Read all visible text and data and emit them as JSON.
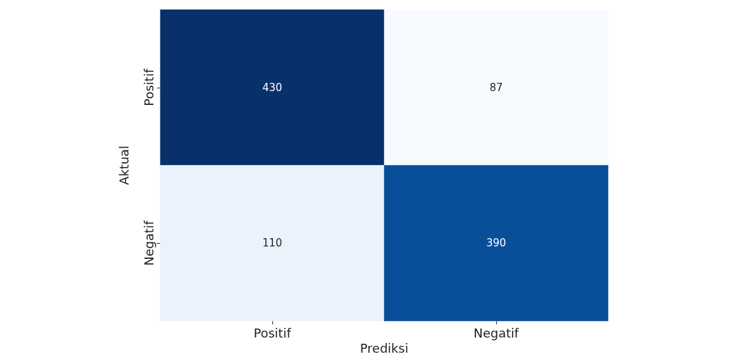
{
  "chart_data": {
    "type": "heatmap",
    "categories": [
      "Positif",
      "Negatif"
    ],
    "y_categories": [
      "Positif",
      "Negatif"
    ],
    "cells": [
      [
        430,
        87
      ],
      [
        110,
        390
      ]
    ],
    "xlabel": "Prediksi",
    "ylabel": "Aktual",
    "data_labels": true
  }
}
